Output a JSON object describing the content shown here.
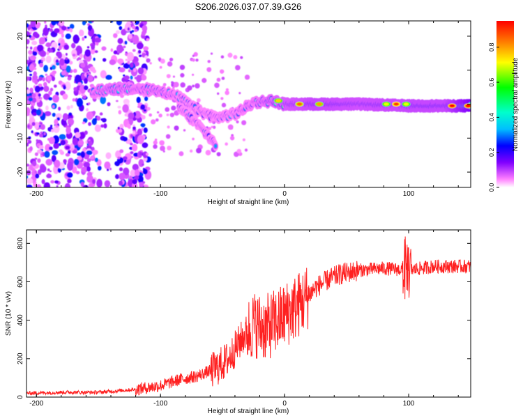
{
  "figure_title": "S206.2026.037.07.39.G26",
  "chart_data": [
    {
      "type": "heatmap",
      "title": "S206.2026.037.07.39.G26",
      "xlabel": "Height of straight line (km)",
      "ylabel": "Frequency (Hz)",
      "xlim": [
        -208,
        150
      ],
      "ylim": [
        -24.5,
        24.5
      ],
      "x_ticks": [
        -200,
        -100,
        0,
        100
      ],
      "y_ticks": [
        -20,
        -10,
        0,
        10,
        20
      ],
      "colorbar": {
        "label": "Normalized spectral amplitude",
        "range": [
          0.0,
          0.95
        ],
        "ticks": [
          0.0,
          0.2,
          0.4,
          0.6,
          0.8
        ],
        "colormap": [
          "#ffffff",
          "#ff80ff",
          "#8000ff",
          "#0000ff",
          "#00bfff",
          "#00ffcc",
          "#00ff00",
          "#ffff00",
          "#ff8000",
          "#ff0000"
        ]
      },
      "ridge": [
        {
          "x": -155,
          "f": 3.5,
          "amp": 0.35
        },
        {
          "x": -140,
          "f": 4.5,
          "amp": 0.4
        },
        {
          "x": -120,
          "f": 4.5,
          "amp": 0.35
        },
        {
          "x": -100,
          "f": 4.0,
          "amp": 0.35
        },
        {
          "x": -85,
          "f": 2.0,
          "amp": 0.3
        },
        {
          "x": -70,
          "f": -2.0,
          "amp": 0.3
        },
        {
          "x": -55,
          "f": -4.0,
          "amp": 0.3
        },
        {
          "x": -40,
          "f": -3.0,
          "amp": 0.3
        },
        {
          "x": -25,
          "f": 0.5,
          "amp": 0.35
        },
        {
          "x": -10,
          "f": 1.0,
          "amp": 0.45
        },
        {
          "x": 0,
          "f": 0.0,
          "amp": 0.5
        },
        {
          "x": 25,
          "f": 0.0,
          "amp": 0.6
        },
        {
          "x": 60,
          "f": 0.0,
          "amp": 0.55
        },
        {
          "x": 100,
          "f": -0.5,
          "amp": 0.6
        },
        {
          "x": 130,
          "f": -0.5,
          "amp": 0.6
        },
        {
          "x": 150,
          "f": -0.5,
          "amp": 0.95
        }
      ],
      "branch": [
        {
          "x": -85,
          "f": -1.0,
          "amp": 0.3
        },
        {
          "x": -70,
          "f": -6.0,
          "amp": 0.3
        },
        {
          "x": -55,
          "f": -12.0,
          "amp": 0.3
        }
      ],
      "hot_spots": [
        {
          "x": -5,
          "f": 1.0,
          "amp": 0.75
        },
        {
          "x": 12,
          "f": 0.0,
          "amp": 0.85
        },
        {
          "x": 28,
          "f": 0.0,
          "amp": 0.8
        },
        {
          "x": 82,
          "f": 0.0,
          "amp": 0.7
        },
        {
          "x": 90,
          "f": 0.0,
          "amp": 0.9
        },
        {
          "x": 98,
          "f": 0.0,
          "amp": 0.7
        },
        {
          "x": 135,
          "f": -0.5,
          "amp": 0.95
        },
        {
          "x": 148,
          "f": -0.5,
          "amp": 0.95
        }
      ],
      "noise_region": {
        "x_from": -208,
        "x_to": -110,
        "amp": 0.2
      }
    },
    {
      "type": "line",
      "xlabel": "Height of straight line (km)",
      "ylabel": "SNR (10 * v/v)",
      "xlim": [
        -208,
        150
      ],
      "ylim": [
        0,
        870
      ],
      "x_ticks": [
        -200,
        -100,
        0,
        100
      ],
      "y_ticks": [
        0,
        200,
        400,
        600,
        800
      ],
      "series": [
        {
          "name": "SNR",
          "color": "#ff2020",
          "x": [
            -208,
            -180,
            -150,
            -120,
            -100,
            -85,
            -70,
            -55,
            -45,
            -35,
            -25,
            -15,
            -5,
            5,
            15,
            25,
            35,
            45,
            60,
            80,
            100,
            120,
            150
          ],
          "values": [
            20,
            25,
            25,
            40,
            60,
            90,
            110,
            150,
            200,
            300,
            380,
            360,
            400,
            450,
            500,
            570,
            610,
            640,
            660,
            670,
            660,
            680,
            680
          ]
        }
      ]
    }
  ]
}
